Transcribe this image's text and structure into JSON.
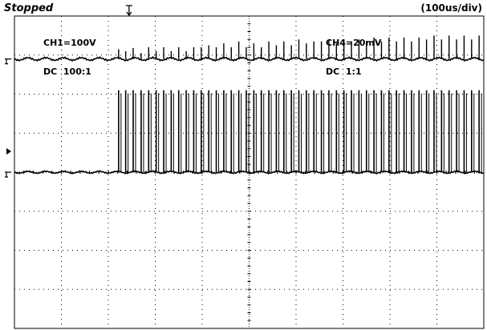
{
  "scope": {
    "status": "Stopped",
    "timebase": "(100us/div)",
    "channels": [
      {
        "name": "CH1=100V",
        "coupling": "DC",
        "probe": "100:1"
      },
      {
        "name": "CH4=20mV",
        "coupling": "DC",
        "probe": "1:1"
      }
    ],
    "colors": {
      "trace": "#000000",
      "grid": "#000000",
      "background": "#ffffff"
    }
  },
  "chart_data": {
    "type": "line",
    "title": "",
    "divisions": {
      "x": 10,
      "y": 8
    },
    "x_units": "divisions",
    "xlim": [
      0,
      10
    ],
    "series": [
      {
        "name": "CH1=100V",
        "baseline_div": 0,
        "ylim_div": [
          -4,
          4
        ],
        "step_start_div": 2.22,
        "pulse_peak_div": 2.1,
        "pulse_times_div": [
          2.22,
          2.37,
          2.53,
          2.7,
          2.86,
          3.02,
          3.18,
          3.34,
          3.5,
          3.66,
          3.82,
          3.98,
          4.14,
          4.3,
          4.46,
          4.62,
          4.78,
          4.94,
          5.1,
          5.26,
          5.42,
          5.58,
          5.74,
          5.9,
          6.06,
          6.22,
          6.38,
          6.54,
          6.7,
          6.86,
          7.02,
          7.18,
          7.34,
          7.5,
          7.66,
          7.82,
          7.98,
          8.14,
          8.3,
          8.46,
          8.62,
          8.78,
          8.94,
          9.1,
          9.26,
          9.42,
          9.58,
          9.74,
          9.9
        ]
      },
      {
        "name": "CH4=20mV",
        "baseline_div": 0,
        "ylim_div": [
          -6.9,
          1.1
        ],
        "step_start_div": 2.22,
        "pulse_times_div": [
          2.22,
          2.37,
          2.53,
          2.7,
          2.86,
          3.02,
          3.18,
          3.34,
          3.5,
          3.66,
          3.82,
          3.98,
          4.14,
          4.3,
          4.46,
          4.62,
          4.78,
          4.94,
          5.1,
          5.26,
          5.42,
          5.58,
          5.74,
          5.9,
          6.06,
          6.22,
          6.38,
          6.54,
          6.7,
          6.86,
          7.02,
          7.18,
          7.34,
          7.5,
          7.66,
          7.82,
          7.98,
          8.14,
          8.3,
          8.46,
          8.62,
          8.78,
          8.94,
          9.1,
          9.26,
          9.42,
          9.58,
          9.74,
          9.9
        ],
        "pulse_peak_div": [
          0.25,
          0.2,
          0.28,
          0.15,
          0.3,
          0.2,
          0.3,
          0.2,
          0.3,
          0.2,
          0.3,
          0.3,
          0.35,
          0.3,
          0.4,
          0.3,
          0.45,
          0.3,
          0.4,
          0.3,
          0.45,
          0.35,
          0.45,
          0.35,
          0.5,
          0.4,
          0.45,
          0.45,
          0.5,
          0.4,
          0.5,
          0.45,
          0.5,
          0.45,
          0.55,
          0.45,
          0.55,
          0.45,
          0.55,
          0.45,
          0.55,
          0.5,
          0.6,
          0.5,
          0.6,
          0.5,
          0.6,
          0.5,
          0.6
        ]
      }
    ]
  }
}
